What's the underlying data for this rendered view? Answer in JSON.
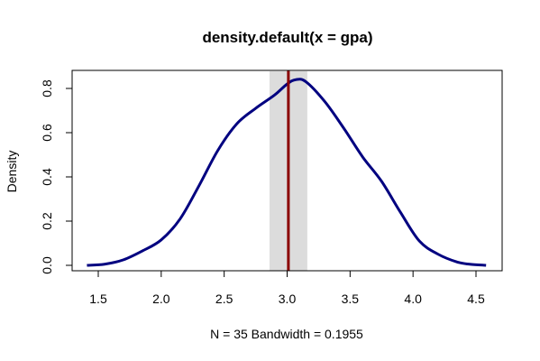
{
  "chart_data": {
    "type": "line",
    "title": "density.default(x = gpa)",
    "xlabel": "N = 35   Bandwidth = 0.1955",
    "ylabel": "Density",
    "xlim": [
      1.4,
      4.6
    ],
    "ylim": [
      0.0,
      0.8
    ],
    "x_ticks": [
      "1.5",
      "2.0",
      "2.5",
      "3.0",
      "3.5",
      "4.0",
      "4.5"
    ],
    "y_ticks": [
      "0.0",
      "0.2",
      "0.4",
      "0.6",
      "0.8"
    ],
    "grid": false,
    "series": [
      {
        "color": "#000080",
        "x": [
          1.41,
          1.55,
          1.7,
          1.85,
          2.0,
          2.15,
          2.3,
          2.45,
          2.6,
          2.75,
          2.9,
          3.0,
          3.07,
          3.15,
          3.3,
          3.45,
          3.6,
          3.75,
          3.9,
          4.05,
          4.2,
          4.35,
          4.45,
          4.58
        ],
        "y": [
          0.0,
          0.005,
          0.025,
          0.065,
          0.115,
          0.21,
          0.36,
          0.52,
          0.64,
          0.71,
          0.77,
          0.82,
          0.84,
          0.83,
          0.74,
          0.62,
          0.49,
          0.38,
          0.24,
          0.11,
          0.05,
          0.015,
          0.005,
          0.0
        ]
      }
    ],
    "annotations": {
      "vertical_line": {
        "x": 3.01,
        "color": "#8B0000"
      },
      "shaded_band": {
        "x_from": 2.86,
        "x_to": 3.16,
        "color": "#dcdcdc"
      }
    }
  }
}
